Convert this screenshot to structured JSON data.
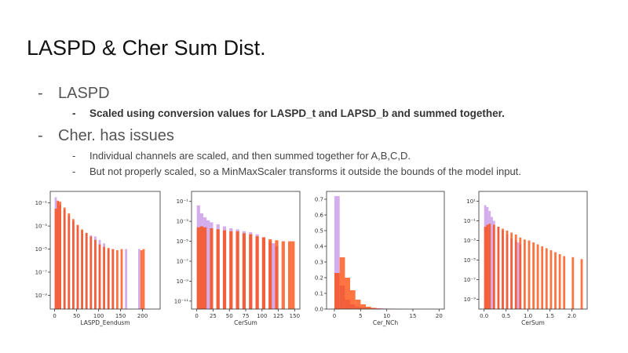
{
  "slide": {
    "title": "LASPD & Cher Sum Dist.",
    "bullets": [
      {
        "text": "LASPD",
        "sub": [
          "Scaled using conversion values for LASPD_t and LAPSD_b and summed together."
        ]
      },
      {
        "text": "Cher. has issues",
        "sub": [
          "Individual channels are scaled, and then summed together for A,B,C,D.",
          "But not properly scaled, so a MinMaxScaler transforms it outside the bounds of the model input."
        ]
      }
    ],
    "dash": "-"
  },
  "colors": {
    "series_a": "#b877e0",
    "series_b": "#ff4500",
    "overlap": "#c2185b"
  },
  "chart_data": [
    {
      "type": "bar",
      "xlabel": "LASPD_Eendusm",
      "yscale": "log",
      "xlim": [
        -10,
        240
      ],
      "ylim_exp": [
        -10.2,
        0
      ],
      "xticks": [
        0,
        50,
        100,
        150,
        200
      ],
      "ytick_labels": [
        "10⁻¹",
        "10⁻³",
        "10⁻⁵",
        "10⁻⁷",
        "10⁻⁹"
      ],
      "ytick_exps": [
        -1,
        -3,
        -5,
        -7,
        -9
      ],
      "series": [
        {
          "name": "",
          "color": "#b877e0",
          "x": [
            0,
            5,
            10,
            20,
            30,
            40,
            50,
            60,
            70,
            80,
            90,
            100,
            110,
            120,
            130,
            160,
            190
          ],
          "log10": [
            -0.5,
            -0.9,
            -1.2,
            -1.6,
            -2.1,
            -2.6,
            -3.0,
            -3.4,
            -3.6,
            -3.8,
            -3.9,
            -4.2,
            -4.5,
            -5.0,
            -5.0,
            -5.0,
            -5.0
          ]
        },
        {
          "name": "",
          "color": "#ff4500",
          "x": [
            0,
            5,
            10,
            20,
            30,
            40,
            50,
            60,
            70,
            80,
            90,
            100,
            110,
            120,
            130,
            140,
            150,
            195,
            200
          ],
          "log10": [
            -1.5,
            -0.8,
            -0.9,
            -1.4,
            -1.9,
            -2.4,
            -2.9,
            -3.3,
            -3.6,
            -3.9,
            -4.2,
            -4.6,
            -4.8,
            -4.9,
            -5.0,
            -5.1,
            -5.0,
            -5.1,
            -5.0
          ]
        }
      ]
    },
    {
      "type": "bar",
      "xlabel": "CerSum",
      "yscale": "log",
      "xlim": [
        -8,
        158
      ],
      "ylim_exp": [
        -11.8,
        0
      ],
      "xticks": [
        0,
        25,
        50,
        75,
        100,
        125,
        150
      ],
      "ytick_labels": [
        "10⁻¹",
        "10⁻³",
        "10⁻⁵",
        "10⁻⁷",
        "10⁻⁹",
        "10⁻¹¹"
      ],
      "ytick_exps": [
        -1,
        -3,
        -5,
        -7,
        -9,
        -11
      ],
      "series": [
        {
          "name": "",
          "color": "#b877e0",
          "x": [
            0,
            5,
            10,
            15,
            20,
            30,
            40,
            50,
            60,
            70,
            80,
            90,
            100,
            110,
            115,
            120
          ],
          "log10": [
            -1.4,
            -2.2,
            -2.6,
            -2.9,
            -3.1,
            -3.3,
            -3.5,
            -3.7,
            -3.8,
            -4.0,
            -4.1,
            -4.3,
            -4.6,
            -5.0,
            -5.2,
            -5.5
          ]
        },
        {
          "name": "",
          "color": "#ff4500",
          "x": [
            0,
            5,
            10,
            20,
            30,
            40,
            50,
            60,
            70,
            80,
            90,
            100,
            110,
            120,
            130,
            140,
            145
          ],
          "log10": [
            -3.6,
            -3.5,
            -3.6,
            -3.7,
            -3.8,
            -3.9,
            -4.0,
            -4.0,
            -4.2,
            -4.3,
            -4.5,
            -4.6,
            -4.8,
            -4.9,
            -5.0,
            -5.0,
            -5.0
          ]
        }
      ]
    },
    {
      "type": "bar",
      "xlabel": "Cer_NCh",
      "yscale": "linear",
      "xlim": [
        -1.5,
        21
      ],
      "ylim": [
        0,
        0.75
      ],
      "xticks": [
        0,
        5,
        10,
        15,
        20
      ],
      "yticks": [
        0.0,
        0.1,
        0.2,
        0.3,
        0.4,
        0.5,
        0.6,
        0.7
      ],
      "series": [
        {
          "name": "",
          "color": "#b877e0",
          "x": [
            0,
            1,
            2,
            3,
            4,
            5,
            6,
            7,
            8,
            9,
            10,
            11,
            12
          ],
          "values": [
            0.72,
            0.15,
            0.06,
            0.03,
            0.015,
            0.01,
            0.008,
            0.006,
            0.005,
            0.004,
            0.003,
            0.002,
            0.001
          ]
        },
        {
          "name": "",
          "color": "#ff4500",
          "x": [
            0,
            1,
            2,
            3,
            4,
            5,
            6,
            7,
            8,
            9,
            10,
            11
          ],
          "values": [
            0.23,
            0.33,
            0.2,
            0.12,
            0.06,
            0.03,
            0.015,
            0.008,
            0.004,
            0.002,
            0.001,
            0.001
          ]
        }
      ]
    },
    {
      "type": "bar",
      "xlabel": "CerSum",
      "yscale": "log",
      "xlim": [
        -0.12,
        2.35
      ],
      "ylim_exp": [
        -10,
        2
      ],
      "xticks": [
        0.0,
        0.5,
        1.0,
        1.5,
        2.0
      ],
      "xtick_labels": [
        "0.0",
        "0.5",
        "1.0",
        "1.5",
        "2.0"
      ],
      "ytick_labels": [
        "10¹",
        "10⁻¹",
        "10⁻³",
        "10⁻⁵",
        "10⁻⁷",
        "10⁻⁹"
      ],
      "ytick_exps": [
        1,
        -1,
        -3,
        -5,
        -7,
        -9
      ],
      "series": [
        {
          "name": "",
          "color": "#b877e0",
          "x": [
            0,
            0.05,
            0.1,
            0.15,
            0.2,
            0.3,
            0.4,
            0.5,
            0.6,
            0.7,
            0.75,
            0.8
          ],
          "log10": [
            0.6,
            0.4,
            0.0,
            -0.6,
            -1.0,
            -1.6,
            -2.0,
            -2.4,
            -2.8,
            -3.0,
            -3.2,
            -3.4
          ]
        },
        {
          "name": "",
          "color": "#ff4500",
          "x": [
            0,
            0.05,
            0.1,
            0.2,
            0.3,
            0.4,
            0.5,
            0.6,
            0.7,
            0.8,
            0.9,
            1.0,
            1.1,
            1.2,
            1.3,
            1.4,
            1.5,
            1.6,
            1.7,
            1.8,
            2.0,
            2.2
          ],
          "log10": [
            -1.6,
            -1.4,
            -1.3,
            -1.4,
            -1.6,
            -1.8,
            -2.0,
            -2.2,
            -2.4,
            -2.7,
            -2.9,
            -3.0,
            -3.2,
            -3.4,
            -3.6,
            -3.8,
            -4.0,
            -4.2,
            -4.4,
            -4.6,
            -4.7,
            -4.9
          ]
        }
      ]
    }
  ]
}
